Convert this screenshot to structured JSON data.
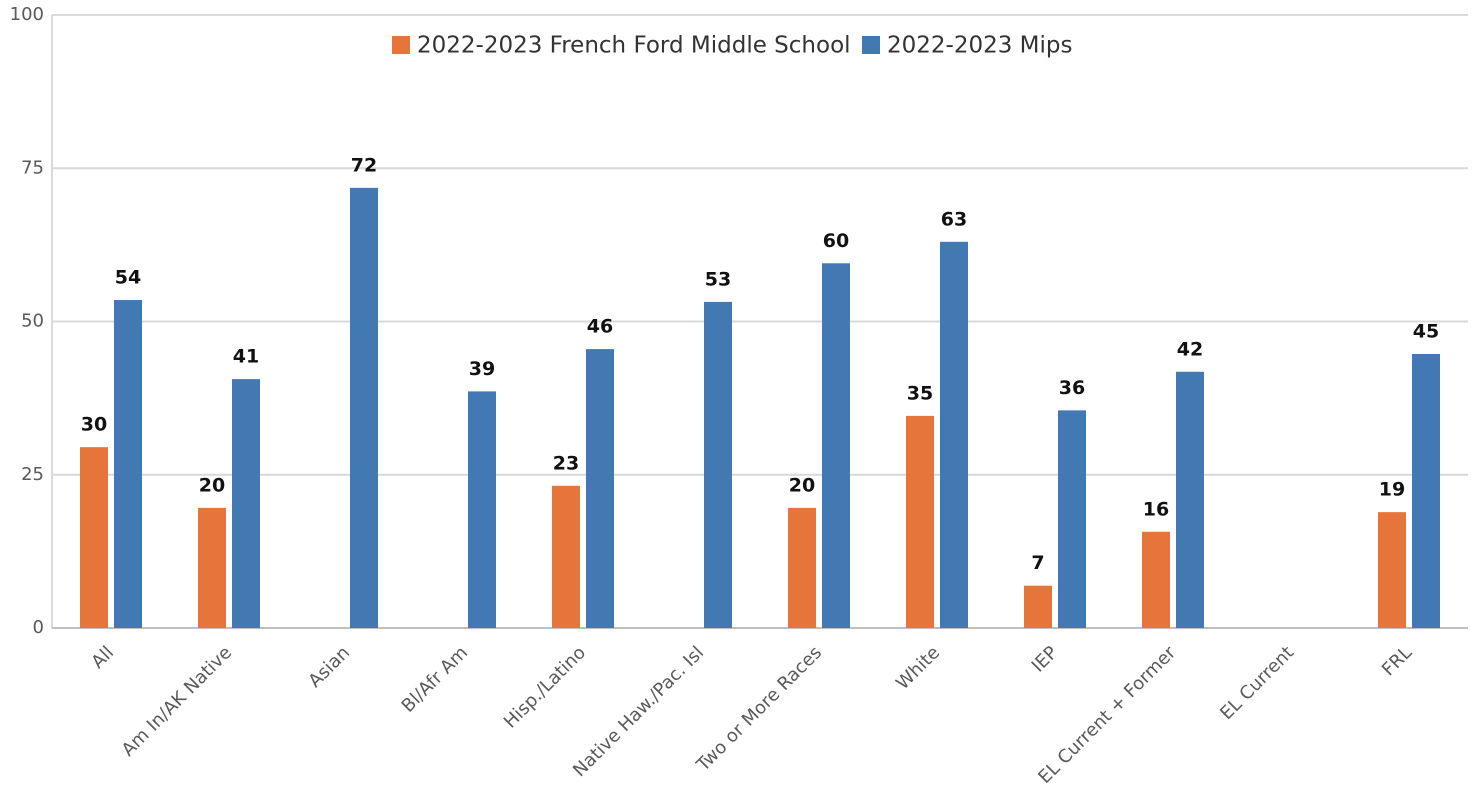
{
  "chart_data": {
    "type": "bar",
    "categories": [
      "All",
      "Am In/AK Native",
      "Asian",
      "Bl/Afr Am",
      "Hisp./Latino",
      "Native Haw./Pac. Isl",
      "Two or More Races",
      "White",
      "IEP",
      "EL Current + Former",
      "EL Current",
      "FRL"
    ],
    "series": [
      {
        "name": "2022-2023 French Ford Middle School",
        "color": "#e5753a",
        "values": [
          29.5,
          19.6,
          null,
          null,
          23.2,
          null,
          19.6,
          34.6,
          6.9,
          15.7,
          null,
          18.9
        ],
        "value_labels": [
          "30",
          "20",
          null,
          null,
          "23",
          null,
          "20",
          "35",
          "7",
          "16",
          null,
          "19"
        ]
      },
      {
        "name": "2022-2023 Mips",
        "color": "#4379b3",
        "values": [
          53.5,
          40.6,
          71.8,
          38.6,
          45.5,
          53.2,
          59.5,
          63.0,
          35.5,
          41.8,
          null,
          44.7
        ],
        "value_labels": [
          "54",
          "41",
          "72",
          "39",
          "46",
          "53",
          "60",
          "63",
          "36",
          "42",
          null,
          "45"
        ]
      }
    ],
    "ylim": [
      0,
      100
    ],
    "yticks": [
      0,
      25,
      50,
      75,
      100
    ],
    "grid": true,
    "legend": "top"
  }
}
